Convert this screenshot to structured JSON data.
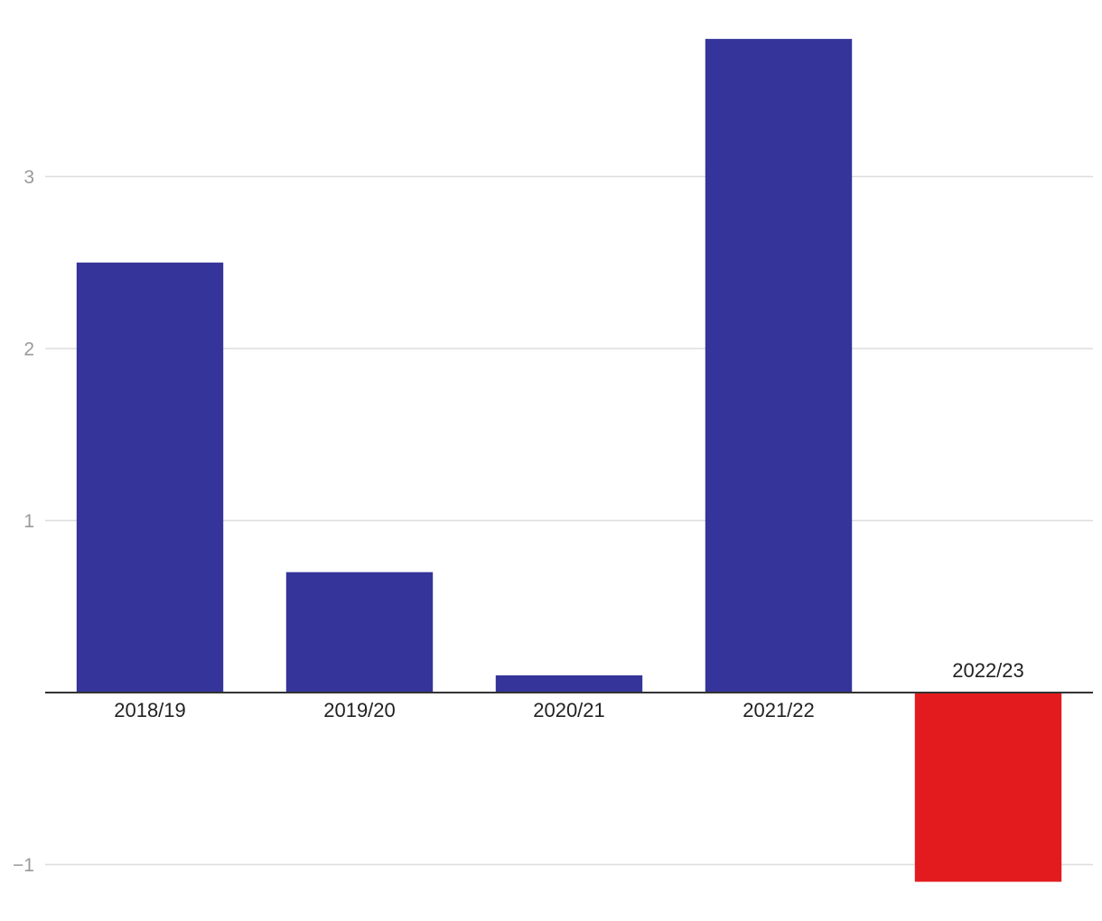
{
  "chart_data": {
    "type": "bar",
    "title": "",
    "xlabel": "",
    "ylabel": "",
    "categories": [
      "2018/19",
      "2019/20",
      "2020/21",
      "2021/22",
      "2022/23"
    ],
    "values": [
      2.5,
      0.7,
      0.1,
      3.8,
      -1.1
    ],
    "ylim": [
      -1.1,
      3.8
    ],
    "yticks": [
      {
        "value": -1,
        "label": "−1"
      },
      {
        "value": 1,
        "label": "1"
      },
      {
        "value": 2,
        "label": "2"
      },
      {
        "value": 3,
        "label": "3"
      }
    ],
    "grid": true,
    "legend": "none",
    "colors": {
      "positive": "#35349a",
      "negative": "#e31b1e",
      "gridline": "#dddddd",
      "zero_line": "#333333"
    }
  }
}
